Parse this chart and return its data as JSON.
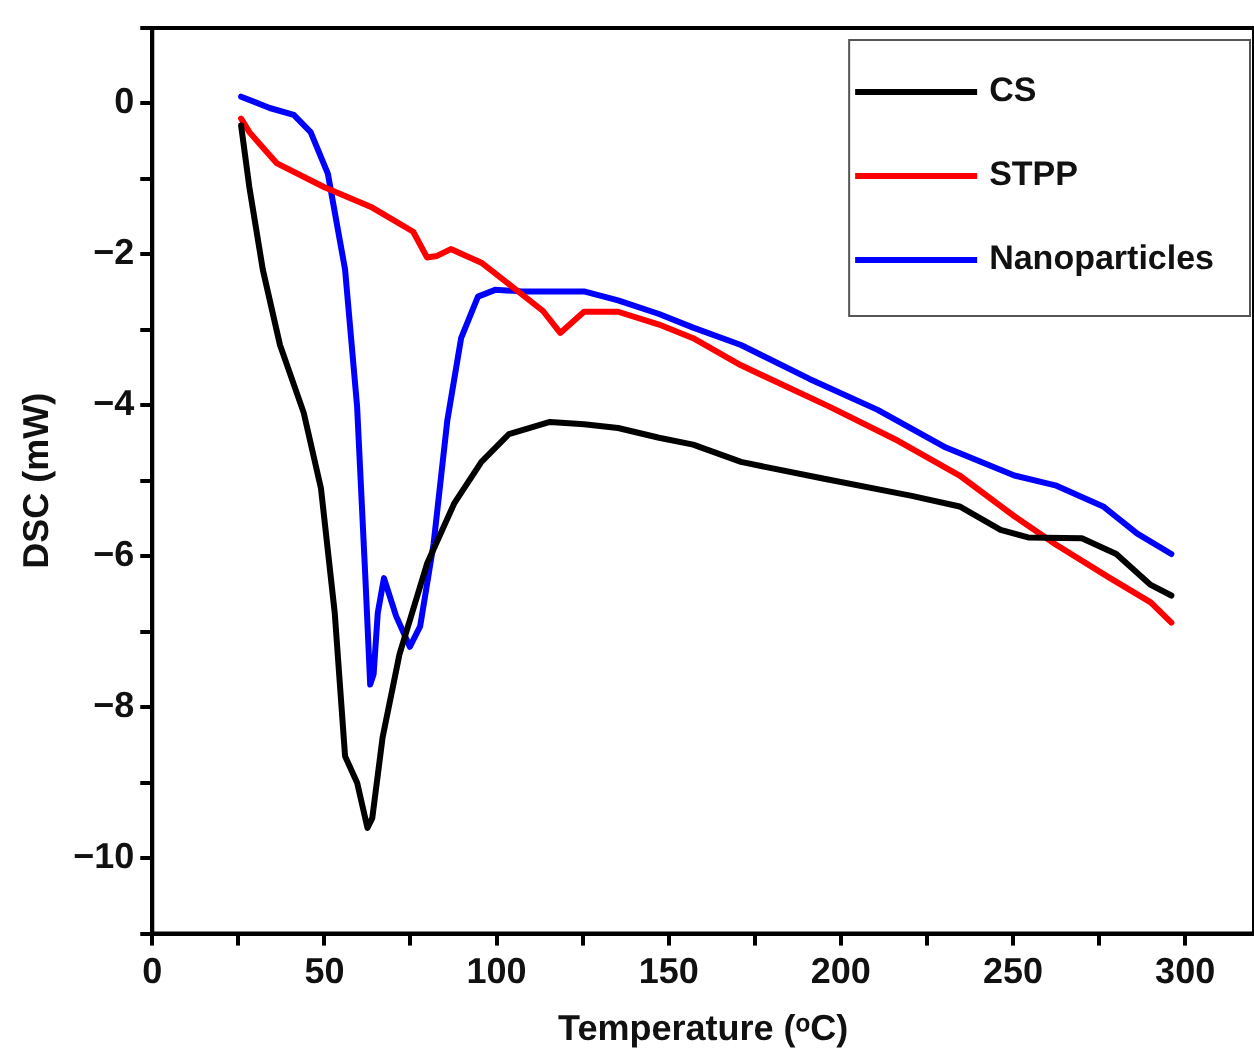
{
  "chart_data": {
    "type": "line",
    "xlabel": "Temperature (ᵒC)",
    "ylabel": "DSC (mW)",
    "xlim": [
      0,
      320
    ],
    "xticks": [
      0,
      {
        "value": 25,
        "label": null
      },
      50,
      {
        "value": 75,
        "label": null
      },
      100,
      {
        "value": 125,
        "label": null
      },
      150,
      {
        "value": 175,
        "label": null
      },
      200,
      {
        "value": 225,
        "label": null
      },
      250,
      {
        "value": 275,
        "label": null
      },
      300
    ],
    "ylim": [
      -11,
      1
    ],
    "yticks": [
      {
        "value": -11,
        "label": null
      },
      {
        "value": -10,
        "label": "−10"
      },
      {
        "value": -9,
        "label": null
      },
      {
        "value": -8,
        "label": "−8"
      },
      {
        "value": -7,
        "label": null
      },
      {
        "value": -6,
        "label": "−6"
      },
      {
        "value": -5,
        "label": null
      },
      {
        "value": -4,
        "label": "−4"
      },
      {
        "value": -3,
        "label": null
      },
      {
        "value": -2,
        "label": "−2"
      },
      {
        "value": -1,
        "label": null
      },
      0,
      {
        "value": 1,
        "label": null
      }
    ],
    "grid": false,
    "legend": "top right",
    "marker": "none",
    "line_style": "solid",
    "series": [
      {
        "name": "CS",
        "color": "#000000",
        "x": [
          25.8,
          28.2,
          32.1,
          37.1,
          44.0,
          49,
          53,
          56,
          59.5,
          62.5,
          63.9,
          66.9,
          71.8,
          79.8,
          87.7,
          95.6,
          103.6,
          115.5,
          125.4,
          135.3,
          147.2,
          157.1,
          171,
          194.8,
          220.6,
          234.5,
          246.4,
          254.4,
          270,
          280,
          290,
          296
        ],
        "values": [
          -0.29,
          -1.11,
          -2.2,
          -3.2,
          -4.1,
          -5.1,
          -6.75,
          -8.65,
          -9.0,
          -9.6,
          -9.47,
          -8.4,
          -7.3,
          -6.1,
          -5.3,
          -4.75,
          -4.38,
          -4.22,
          -4.25,
          -4.3,
          -4.43,
          -4.52,
          -4.75,
          -4.97,
          -5.2,
          -5.34,
          -5.65,
          -5.75,
          -5.76,
          -5.97,
          -6.38,
          -6.52
        ]
      },
      {
        "name": "STPP",
        "color": "#ff0000",
        "x": [
          25.8,
          28.2,
          36.1,
          50,
          63.9,
          75.8,
          79.8,
          82.7,
          86.7,
          95.6,
          104.6,
          113.5,
          118.5,
          125.4,
          135.3,
          147.2,
          157.1,
          171,
          196.8,
          216.6,
          234.5,
          250.4,
          262.3,
          278.2,
          290,
          296
        ],
        "values": [
          -0.2,
          -0.38,
          -0.79,
          -1.11,
          -1.38,
          -1.7,
          -2.04,
          -2.02,
          -1.93,
          -2.11,
          -2.43,
          -2.75,
          -3.04,
          -2.76,
          -2.76,
          -2.93,
          -3.11,
          -3.47,
          -4.02,
          -4.47,
          -4.93,
          -5.47,
          -5.84,
          -6.29,
          -6.61,
          -6.88
        ]
      },
      {
        "name": "Nanoparticles",
        "color": "#0000ff",
        "x": [
          25.8,
          34.1,
          41.1,
          46,
          51,
          56,
          59.5,
          61.9,
          63.3,
          64.3,
          65.5,
          67.3,
          70.8,
          74.8,
          77.8,
          81.7,
          85.7,
          89.7,
          94.6,
          99.6,
          107.5,
          125.4,
          135.3,
          147.2,
          157.1,
          171,
          190.9,
          210.7,
          230.5,
          250.4,
          262.3,
          276.2,
          286.1,
          296
        ],
        "values": [
          0.09,
          -0.06,
          -0.15,
          -0.38,
          -0.93,
          -2.2,
          -4.02,
          -6.29,
          -7.7,
          -7.56,
          -6.75,
          -6.29,
          -6.79,
          -7.2,
          -6.93,
          -5.84,
          -4.2,
          -3.11,
          -2.56,
          -2.47,
          -2.49,
          -2.49,
          -2.61,
          -2.79,
          -2.97,
          -3.2,
          -3.65,
          -4.06,
          -4.56,
          -4.93,
          -5.06,
          -5.34,
          -5.7,
          -5.97
        ]
      }
    ]
  }
}
